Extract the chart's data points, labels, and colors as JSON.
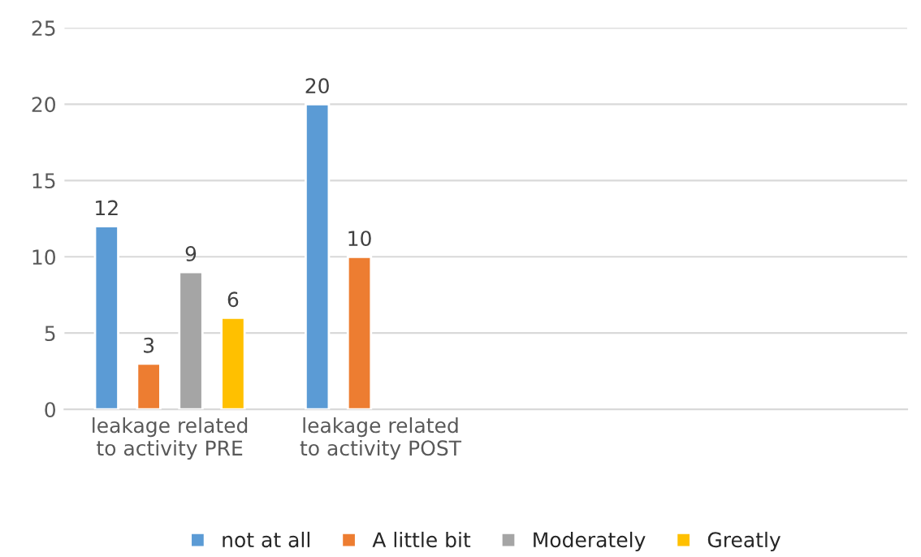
{
  "chart_data": {
    "type": "bar",
    "categories": [
      "leakage related\nto activity PRE",
      "leakage related\nto activity POST",
      null,
      null
    ],
    "series": [
      {
        "name": "not at all",
        "color": "#5b9bd5",
        "values": [
          12,
          20,
          null,
          null
        ]
      },
      {
        "name": "A little bit",
        "color": "#ed7d31",
        "values": [
          3,
          10,
          null,
          null
        ]
      },
      {
        "name": "Moderately",
        "color": "#a5a5a5",
        "values": [
          9,
          null,
          null,
          null
        ]
      },
      {
        "name": "Greatly",
        "color": "#ffc000",
        "values": [
          6,
          null,
          null,
          null
        ]
      }
    ],
    "ylim": [
      0,
      25
    ],
    "yticks": [
      0,
      5,
      10,
      15,
      20,
      25
    ],
    "grid": "y",
    "legend": "bottom",
    "data_labels": true
  }
}
